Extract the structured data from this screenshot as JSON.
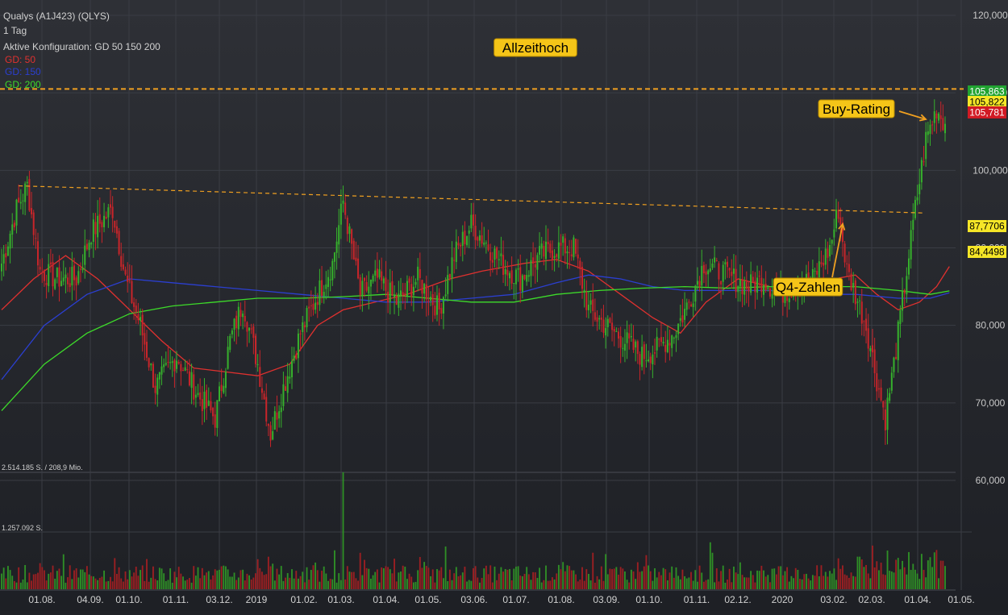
{
  "header": {
    "title": "Qualys (A1J423) (QLYS)",
    "interval": "1 Tag",
    "config": "Aktive Konfiguration: GD 50 150 200"
  },
  "legend": [
    {
      "label": "GD: 50",
      "color": "#e0312f"
    },
    {
      "label": "GD: 150",
      "color": "#2b3fd1"
    },
    {
      "label": "GD: 200",
      "color": "#3ddb2a"
    }
  ],
  "colors": {
    "background": "#1f2126",
    "grid": "#3a3d44",
    "candle_up": "#36b02c",
    "candle_down": "#c8252a",
    "annotation_line": "#f0a020",
    "annotation_box": "#f5c518"
  },
  "volume_labels": {
    "top": "2.514.185 S. / 208,9 Mio.",
    "mid": "1.257.092 S."
  },
  "annotations": {
    "ath": "Allzeithoch",
    "buy": "Buy-Rating",
    "q4": "Q4-Zahlen"
  },
  "price_badges": [
    {
      "value": "105,863",
      "bg": "#21a331",
      "fg": "#ffffff",
      "price": 105.863
    },
    {
      "value": "105,822",
      "bg": "#f5e627",
      "fg": "#000000",
      "price": 105.822
    },
    {
      "value": "105,781",
      "bg": "#d11a24",
      "fg": "#ffffff",
      "price": 105.781
    },
    {
      "value": "87,7706",
      "bg": "#f5e627",
      "fg": "#000000",
      "price": 87.7706
    },
    {
      "value": "84,4498",
      "bg": "#f5e627",
      "fg": "#000000",
      "price": 84.4498
    }
  ],
  "chart_data": {
    "type": "candlestick",
    "instrument": "Qualys (A1J423) (QLYS)",
    "interval": "1 Tag",
    "y_ticks": [
      {
        "label": "120,000",
        "value": 120
      },
      {
        "label": "110,000",
        "value": 110
      },
      {
        "label": "100,000",
        "value": 100
      },
      {
        "label": "90,000",
        "value": 90
      },
      {
        "label": "80,000",
        "value": 80
      },
      {
        "label": "70,000",
        "value": 70
      },
      {
        "label": "60,000",
        "value": 60
      }
    ],
    "ylim": [
      59,
      121
    ],
    "x_ticks": [
      "01.08.",
      "04.09.",
      "01.10.",
      "01.11.",
      "03.12.",
      "2019",
      "01.02.",
      "01.03.",
      "01.04.",
      "01.05.",
      "03.06.",
      "01.07.",
      "01.08.",
      "03.09.",
      "01.10.",
      "01.11.",
      "02.12.",
      "2020",
      "03.02.",
      "02.03.",
      "01.04.",
      "01.05."
    ],
    "close_anchors": [
      [
        0,
        88
      ],
      [
        7,
        95
      ],
      [
        12,
        98
      ],
      [
        18,
        87
      ],
      [
        26,
        86
      ],
      [
        35,
        86
      ],
      [
        42,
        92
      ],
      [
        52,
        95
      ],
      [
        58,
        86
      ],
      [
        65,
        80
      ],
      [
        72,
        72
      ],
      [
        82,
        76
      ],
      [
        92,
        71
      ],
      [
        100,
        68
      ],
      [
        107,
        78
      ],
      [
        113,
        83
      ],
      [
        120,
        75
      ],
      [
        126,
        66
      ],
      [
        132,
        72
      ],
      [
        140,
        79
      ],
      [
        148,
        84
      ],
      [
        155,
        88
      ],
      [
        160,
        96
      ],
      [
        168,
        84
      ],
      [
        176,
        86
      ],
      [
        185,
        83
      ],
      [
        195,
        86
      ],
      [
        205,
        82
      ],
      [
        212,
        89
      ],
      [
        220,
        93
      ],
      [
        226,
        91
      ],
      [
        234,
        88
      ],
      [
        243,
        86
      ],
      [
        252,
        89
      ],
      [
        260,
        90
      ],
      [
        268,
        90
      ],
      [
        275,
        82
      ],
      [
        283,
        80
      ],
      [
        292,
        78
      ],
      [
        300,
        76
      ],
      [
        307,
        77
      ],
      [
        315,
        79
      ],
      [
        322,
        83
      ],
      [
        329,
        88
      ],
      [
        336,
        87
      ],
      [
        343,
        86
      ],
      [
        350,
        85
      ],
      [
        357,
        86
      ],
      [
        364,
        84
      ],
      [
        372,
        85
      ],
      [
        380,
        86
      ],
      [
        388,
        90
      ],
      [
        392,
        95
      ],
      [
        396,
        87
      ],
      [
        400,
        84
      ],
      [
        405,
        80
      ],
      [
        410,
        73
      ],
      [
        414,
        68
      ],
      [
        418,
        75
      ],
      [
        423,
        85
      ],
      [
        428,
        95
      ],
      [
        433,
        104
      ],
      [
        438,
        108
      ],
      [
        442,
        106
      ]
    ],
    "moving_averages": [
      {
        "name": "GD: 50",
        "color": "#e0312f",
        "points": [
          [
            0,
            82
          ],
          [
            15,
            86
          ],
          [
            30,
            89
          ],
          [
            45,
            86
          ],
          [
            60,
            82
          ],
          [
            75,
            78
          ],
          [
            90,
            74.5
          ],
          [
            105,
            74
          ],
          [
            120,
            73.5
          ],
          [
            135,
            75
          ],
          [
            148,
            80
          ],
          [
            160,
            82
          ],
          [
            175,
            83
          ],
          [
            190,
            84
          ],
          [
            210,
            86
          ],
          [
            225,
            87
          ],
          [
            245,
            88
          ],
          [
            260,
            88.5
          ],
          [
            275,
            87
          ],
          [
            290,
            84
          ],
          [
            305,
            81
          ],
          [
            318,
            79
          ],
          [
            330,
            83
          ],
          [
            345,
            86
          ],
          [
            360,
            85
          ],
          [
            375,
            85
          ],
          [
            390,
            86
          ],
          [
            400,
            86.5
          ],
          [
            410,
            84
          ],
          [
            420,
            82
          ],
          [
            430,
            83
          ],
          [
            438,
            85
          ],
          [
            444,
            87.6
          ]
        ]
      },
      {
        "name": "GD: 150",
        "color": "#2b3fd1",
        "points": [
          [
            0,
            73
          ],
          [
            20,
            80
          ],
          [
            40,
            84
          ],
          [
            60,
            86
          ],
          [
            80,
            85.5
          ],
          [
            100,
            85
          ],
          [
            120,
            84.5
          ],
          [
            140,
            84
          ],
          [
            160,
            83.5
          ],
          [
            180,
            83
          ],
          [
            200,
            83
          ],
          [
            220,
            83.5
          ],
          [
            240,
            84
          ],
          [
            260,
            85.5
          ],
          [
            275,
            86.5
          ],
          [
            290,
            86
          ],
          [
            305,
            85
          ],
          [
            320,
            84.5
          ],
          [
            340,
            84.5
          ],
          [
            360,
            84.5
          ],
          [
            380,
            84
          ],
          [
            400,
            84
          ],
          [
            420,
            83.5
          ],
          [
            435,
            83.5
          ],
          [
            444,
            84.2
          ]
        ]
      },
      {
        "name": "GD: 200",
        "color": "#3ddb2a",
        "points": [
          [
            0,
            69
          ],
          [
            20,
            75
          ],
          [
            40,
            79
          ],
          [
            60,
            81.5
          ],
          [
            80,
            82.5
          ],
          [
            100,
            83
          ],
          [
            120,
            83.5
          ],
          [
            140,
            83.5
          ],
          [
            160,
            83.7
          ],
          [
            180,
            84
          ],
          [
            200,
            83.5
          ],
          [
            220,
            83
          ],
          [
            240,
            83
          ],
          [
            260,
            84
          ],
          [
            280,
            84.5
          ],
          [
            300,
            84.8
          ],
          [
            320,
            85
          ],
          [
            340,
            84.8
          ],
          [
            360,
            85
          ],
          [
            380,
            85
          ],
          [
            400,
            85
          ],
          [
            420,
            84.5
          ],
          [
            435,
            84
          ],
          [
            444,
            84.45
          ]
        ]
      }
    ],
    "resistance_line": {
      "from": [
        8,
        98
      ],
      "to": [
        432,
        94.5
      ],
      "color": "#f0a020"
    },
    "all_time_high": {
      "value": 110.5,
      "label": "Allzeithoch"
    },
    "volume_max_label": "2.514.185 S. / 208,9 Mio."
  }
}
